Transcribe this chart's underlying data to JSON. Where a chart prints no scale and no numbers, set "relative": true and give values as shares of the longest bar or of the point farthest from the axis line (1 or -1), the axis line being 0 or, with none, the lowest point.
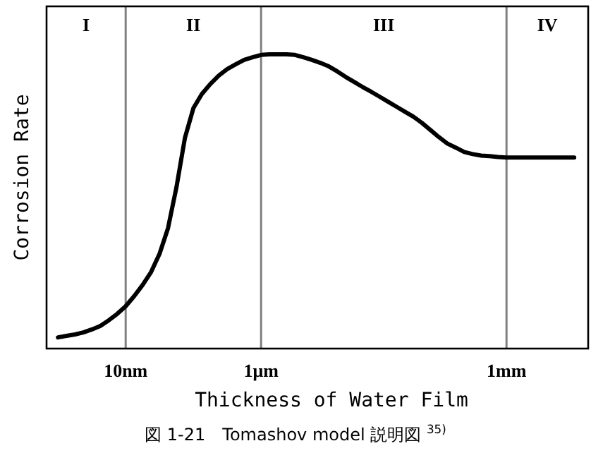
{
  "chart_data": {
    "type": "line",
    "relative": true,
    "xlabel": "Thickness of Water Film",
    "ylabel": "Corrosion Rate",
    "annotations": [
      "I",
      "II",
      "III",
      "IV",
      "図 1-21　Tomashov model 説明図 $^{35)}$"
    ],
    "categories": [
      null,
      null,
      null,
      null,
      null,
      null,
      null,
      null,
      "10nm",
      null,
      null,
      null,
      null,
      null,
      null,
      null,
      null,
      null,
      null,
      null,
      null,
      null,
      null,
      null,
      "1μm",
      null,
      null,
      null,
      null,
      null,
      null,
      null,
      null,
      null,
      null,
      null,
      null,
      null,
      null,
      null,
      null,
      null,
      null,
      null,
      null,
      null,
      null,
      null,
      null,
      null,
      null,
      null,
      null,
      "1mm",
      null,
      null,
      null,
      null,
      null,
      null,
      null,
      null
    ],
    "series": [
      {
        "color": "#000000",
        "values": [
          0.038,
          0.043,
          0.048,
          0.055,
          0.065,
          0.077,
          0.096,
          0.118,
          0.144,
          0.178,
          0.216,
          0.26,
          0.322,
          0.409,
          0.548,
          0.716,
          0.817,
          0.865,
          0.899,
          0.928,
          0.95,
          0.966,
          0.981,
          0.99,
          0.998,
          1,
          1,
          1,
          0.998,
          0.99,
          0.981,
          0.971,
          0.959,
          0.942,
          0.923,
          0.906,
          0.889,
          0.873,
          0.856,
          0.839,
          0.822,
          0.805,
          0.788,
          0.767,
          0.743,
          0.719,
          0.697,
          0.683,
          0.668,
          0.661,
          0.656,
          0.654,
          0.651,
          0.649,
          0.649,
          0.649,
          0.649,
          0.649,
          0.649,
          0.649,
          0.649,
          0.649
        ]
      }
    ],
    "grid": "x",
    "marker": "none",
    "line_style": "solid"
  }
}
